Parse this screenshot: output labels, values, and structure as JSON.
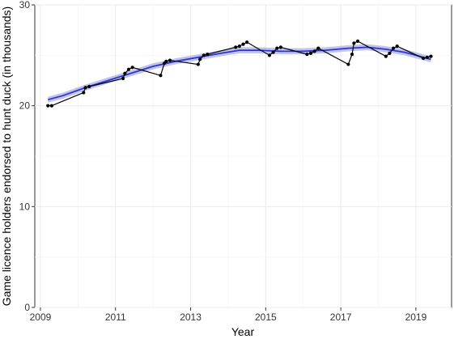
{
  "chart_data": {
    "type": "line",
    "title": "",
    "xlabel": "Year",
    "ylabel": "Game licence holders endorsed to hunt duck (in thousands)",
    "xlim": [
      2008.85,
      2019.95
    ],
    "ylim": [
      0,
      30
    ],
    "x_ticks": [
      2009,
      2011,
      2013,
      2015,
      2017,
      2019
    ],
    "y_ticks": [
      0,
      10,
      20,
      30
    ],
    "grid": true,
    "legend": "none",
    "series": [
      {
        "type": "line-points",
        "color": "#000000",
        "points": [
          [
            2009.2,
            20.0
          ],
          [
            2009.3,
            20.0
          ],
          [
            2010.15,
            21.3
          ],
          [
            2010.2,
            21.8
          ],
          [
            2010.3,
            21.9
          ],
          [
            2011.2,
            22.7
          ],
          [
            2011.25,
            23.2
          ],
          [
            2011.35,
            23.6
          ],
          [
            2011.45,
            23.8
          ],
          [
            2012.2,
            23.0
          ],
          [
            2012.3,
            24.2
          ],
          [
            2012.35,
            24.4
          ],
          [
            2012.45,
            24.5
          ],
          [
            2013.2,
            24.1
          ],
          [
            2013.25,
            24.6
          ],
          [
            2013.35,
            25.0
          ],
          [
            2013.45,
            25.1
          ],
          [
            2014.2,
            25.8
          ],
          [
            2014.3,
            25.9
          ],
          [
            2014.4,
            26.1
          ],
          [
            2014.5,
            26.3
          ],
          [
            2015.1,
            25.0
          ],
          [
            2015.2,
            25.3
          ],
          [
            2015.3,
            25.7
          ],
          [
            2015.4,
            25.8
          ],
          [
            2016.1,
            25.1
          ],
          [
            2016.2,
            25.2
          ],
          [
            2016.3,
            25.4
          ],
          [
            2016.4,
            25.7
          ],
          [
            2017.2,
            24.1
          ],
          [
            2017.3,
            25.1
          ],
          [
            2017.35,
            26.2
          ],
          [
            2017.45,
            26.4
          ],
          [
            2018.2,
            24.9
          ],
          [
            2018.3,
            25.2
          ],
          [
            2018.4,
            25.7
          ],
          [
            2018.5,
            25.9
          ],
          [
            2019.2,
            24.7
          ],
          [
            2019.3,
            24.8
          ],
          [
            2019.4,
            24.9
          ]
        ]
      },
      {
        "type": "smooth",
        "color": "#3333cc",
        "band_color": "#aab0e6",
        "points": [
          [
            2009.2,
            20.6
          ],
          [
            2009.6,
            21.0
          ],
          [
            2010.2,
            21.8
          ],
          [
            2010.8,
            22.5
          ],
          [
            2011.4,
            23.2
          ],
          [
            2012.0,
            23.9
          ],
          [
            2012.6,
            24.4
          ],
          [
            2013.2,
            24.8
          ],
          [
            2013.8,
            25.2
          ],
          [
            2014.3,
            25.5
          ],
          [
            2014.8,
            25.5
          ],
          [
            2015.4,
            25.4
          ],
          [
            2016.0,
            25.4
          ],
          [
            2016.6,
            25.5
          ],
          [
            2017.2,
            25.7
          ],
          [
            2017.7,
            25.8
          ],
          [
            2018.2,
            25.6
          ],
          [
            2018.7,
            25.3
          ],
          [
            2019.1,
            24.9
          ],
          [
            2019.4,
            24.6
          ]
        ],
        "band": 0.3
      }
    ]
  }
}
